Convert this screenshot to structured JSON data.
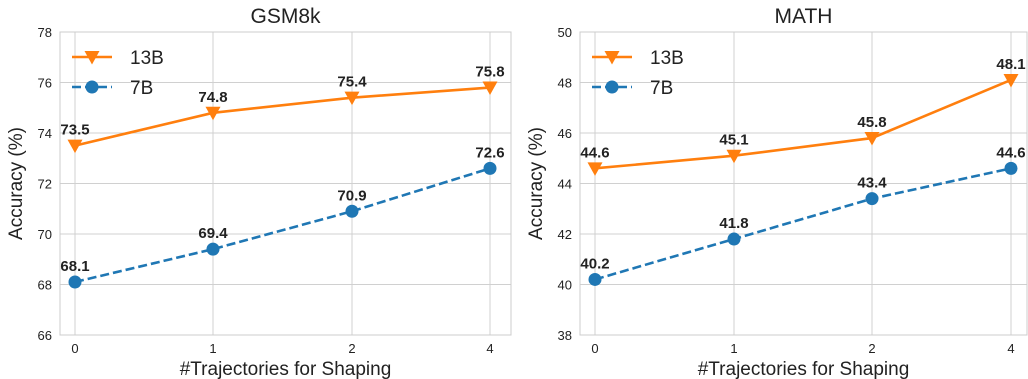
{
  "chart_data": [
    {
      "type": "line",
      "title": "GSM8k",
      "xlabel": "#Trajectories for Shaping",
      "ylabel": "Accuracy (%)",
      "categories": [
        "0",
        "1",
        "2",
        "4"
      ],
      "ylim": [
        66,
        78
      ],
      "yticks": [
        66,
        68,
        70,
        72,
        74,
        76,
        78
      ],
      "grid": true,
      "legend_position": "top-left",
      "series": [
        {
          "name": "13B",
          "values": [
            73.5,
            74.8,
            75.4,
            75.8
          ],
          "labels": [
            "73.5",
            "74.8",
            "75.4",
            "75.8"
          ],
          "color": "#ff7f0e",
          "marker": "triangle-down",
          "line_style": "solid"
        },
        {
          "name": "7B",
          "values": [
            68.1,
            69.4,
            70.9,
            72.6
          ],
          "labels": [
            "68.1",
            "69.4",
            "70.9",
            "72.6"
          ],
          "color": "#1f77b4",
          "marker": "circle",
          "line_style": "dashed"
        }
      ]
    },
    {
      "type": "line",
      "title": "MATH",
      "xlabel": "#Trajectories for Shaping",
      "ylabel": "Accuracy (%)",
      "categories": [
        "0",
        "1",
        "2",
        "4"
      ],
      "ylim": [
        38,
        50
      ],
      "yticks": [
        38,
        40,
        42,
        44,
        46,
        48,
        50
      ],
      "grid": true,
      "legend_position": "top-left",
      "series": [
        {
          "name": "13B",
          "values": [
            44.6,
            45.1,
            45.8,
            48.1
          ],
          "labels": [
            "44.6",
            "45.1",
            "45.8",
            "48.1"
          ],
          "color": "#ff7f0e",
          "marker": "triangle-down",
          "line_style": "solid"
        },
        {
          "name": "7B",
          "values": [
            40.2,
            41.8,
            43.4,
            44.6
          ],
          "labels": [
            "40.2",
            "41.8",
            "43.4",
            "44.6"
          ],
          "color": "#1f77b4",
          "marker": "circle",
          "line_style": "dashed"
        }
      ]
    }
  ]
}
